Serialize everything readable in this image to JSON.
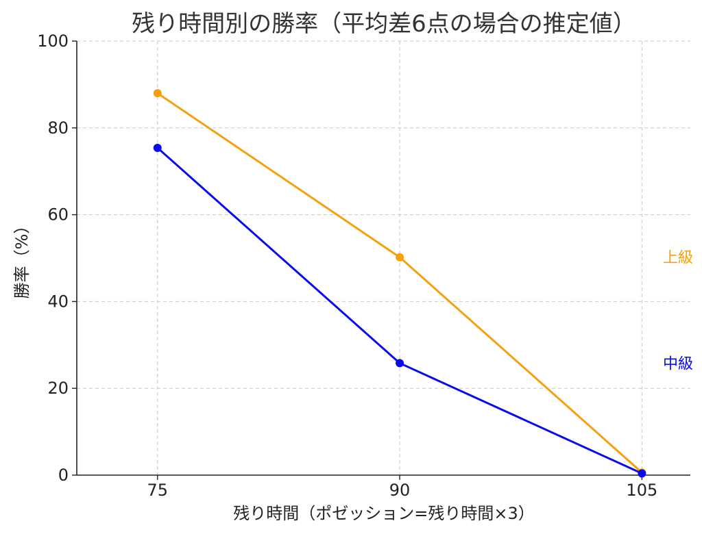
{
  "chart_data": {
    "type": "line",
    "title": "残り時間別の勝率（平均差6点の場合の推定値）",
    "xlabel": "残り時間（ポゼッション=残り時間×3）",
    "ylabel": "勝率（%）",
    "x": [
      75,
      90,
      105
    ],
    "xticks": [
      "75",
      "90",
      "105"
    ],
    "ylim": [
      0,
      100
    ],
    "yticks": [
      "0",
      "20",
      "40",
      "60",
      "80",
      "100"
    ],
    "grid": true,
    "series": [
      {
        "name": "上級",
        "color": "#f5a10f",
        "values": [
          88,
          50.2,
          0.6
        ]
      },
      {
        "name": "中級",
        "color": "#0a0aee",
        "values": [
          75.4,
          25.8,
          0.4
        ]
      }
    ]
  }
}
